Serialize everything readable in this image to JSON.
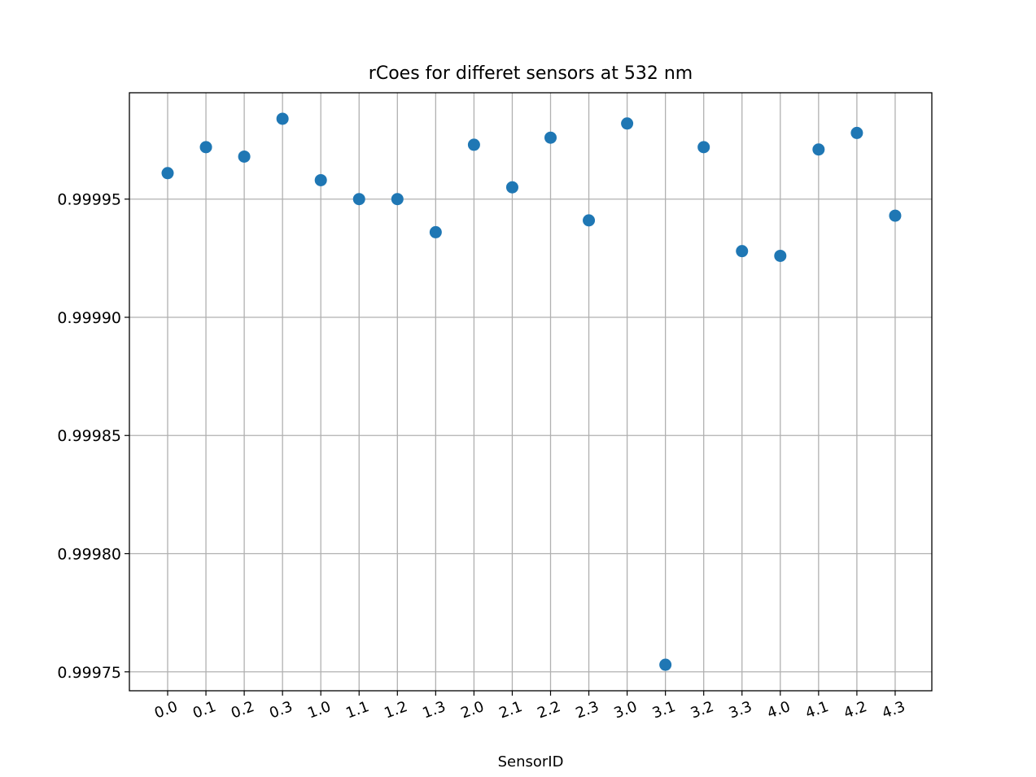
{
  "chart_data": {
    "type": "scatter",
    "title": "rCoes for differet sensors at 532 nm",
    "xlabel": "SensorID",
    "ylabel": "",
    "categories": [
      "0.0",
      "0.1",
      "0.2",
      "0.3",
      "1.0",
      "1.1",
      "1.2",
      "1.3",
      "2.0",
      "2.1",
      "2.2",
      "2.3",
      "3.0",
      "3.1",
      "3.2",
      "3.3",
      "4.0",
      "4.1",
      "4.2",
      "4.3"
    ],
    "values": [
      0.999961,
      0.999972,
      0.999968,
      0.999984,
      0.999958,
      0.99995,
      0.99995,
      0.999936,
      0.999973,
      0.999955,
      0.999976,
      0.999941,
      0.999982,
      0.999753,
      0.999972,
      0.999928,
      0.999926,
      0.999971,
      0.999978,
      0.999943
    ],
    "yticks": [
      0.99975,
      0.9998,
      0.99985,
      0.9999,
      0.99995
    ],
    "ytick_labels": [
      "0.99975",
      "0.99980",
      "0.99985",
      "0.99990",
      "0.99995"
    ],
    "ylim": [
      0.999742,
      0.999995
    ],
    "grid": true,
    "xtick_rotation_deg": 20,
    "marker_color": "#1f77b4",
    "grid_color": "#b0b0b0"
  }
}
